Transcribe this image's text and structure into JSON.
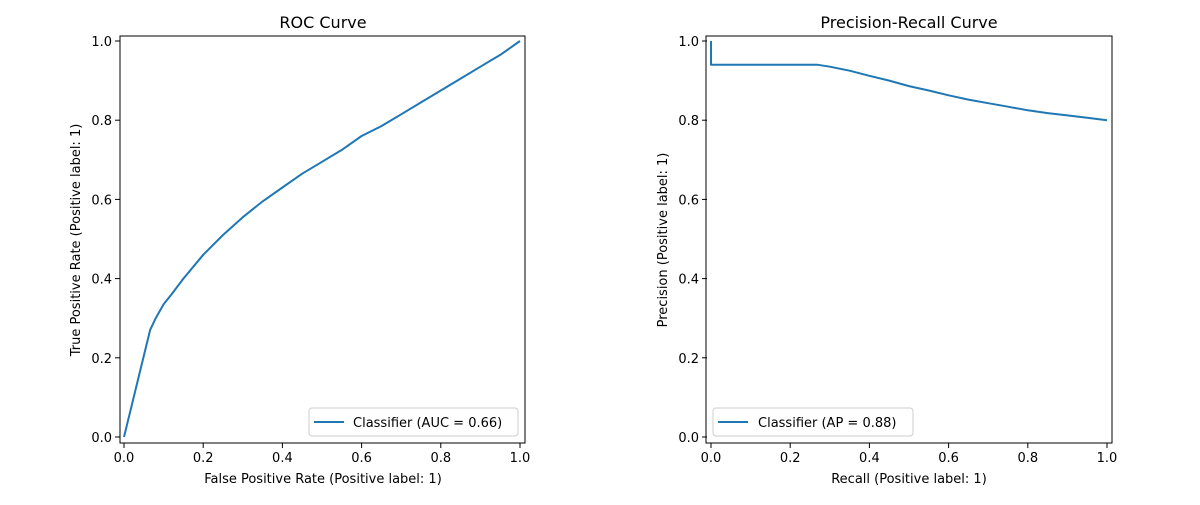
{
  "chart_data": [
    {
      "type": "line",
      "title": "ROC Curve",
      "xlabel": "False Positive Rate (Positive label: 1)",
      "ylabel": "True Positive Rate (Positive label: 1)",
      "xlim": [
        0,
        1
      ],
      "ylim": [
        0,
        1
      ],
      "xticks": [
        "0.0",
        "0.2",
        "0.4",
        "0.6",
        "0.8",
        "1.0"
      ],
      "yticks": [
        "0.0",
        "0.2",
        "0.4",
        "0.6",
        "0.8",
        "1.0"
      ],
      "grid": false,
      "legend_position": "lower-right",
      "series": [
        {
          "name": "Classifier (AUC = 0.66)",
          "color": "#1f77b4",
          "x": [
            0.0,
            0.066,
            0.08,
            0.1,
            0.12,
            0.15,
            0.2,
            0.25,
            0.3,
            0.35,
            0.4,
            0.45,
            0.5,
            0.55,
            0.6,
            0.65,
            0.7,
            0.75,
            0.8,
            0.85,
            0.9,
            0.95,
            1.0
          ],
          "y": [
            0.0,
            0.27,
            0.3,
            0.335,
            0.36,
            0.4,
            0.46,
            0.51,
            0.555,
            0.595,
            0.63,
            0.665,
            0.695,
            0.725,
            0.76,
            0.785,
            0.815,
            0.845,
            0.875,
            0.905,
            0.935,
            0.965,
            1.0
          ]
        }
      ]
    },
    {
      "type": "line",
      "title": "Precision-Recall Curve",
      "xlabel": "Recall (Positive label: 1)",
      "ylabel": "Precision (Positive label: 1)",
      "xlim": [
        0,
        1
      ],
      "ylim": [
        0,
        1
      ],
      "xticks": [
        "0.0",
        "0.2",
        "0.4",
        "0.6",
        "0.8",
        "1.0"
      ],
      "yticks": [
        "0.0",
        "0.2",
        "0.4",
        "0.6",
        "0.8",
        "1.0"
      ],
      "grid": false,
      "legend_position": "lower-left",
      "series": [
        {
          "name": "Classifier (AP = 0.88)",
          "color": "#1f77b4",
          "x": [
            0.0,
            0.0,
            0.002,
            0.002,
            0.27,
            0.3,
            0.35,
            0.4,
            0.45,
            0.5,
            0.55,
            0.6,
            0.65,
            0.7,
            0.75,
            0.8,
            0.85,
            0.9,
            0.95,
            1.0
          ],
          "y": [
            1.0,
            0.94,
            0.94,
            0.94,
            0.94,
            0.935,
            0.925,
            0.912,
            0.9,
            0.886,
            0.875,
            0.863,
            0.852,
            0.843,
            0.834,
            0.825,
            0.818,
            0.812,
            0.806,
            0.8
          ]
        }
      ]
    }
  ]
}
